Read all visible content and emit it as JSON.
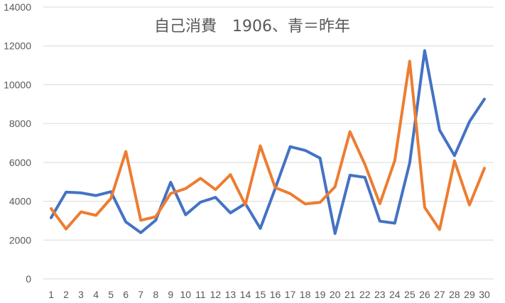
{
  "chart_data": {
    "type": "line",
    "title": "自己消費　1906、青＝昨年",
    "xlabel": "",
    "ylabel": "",
    "ylim": [
      0,
      14000
    ],
    "yticks": [
      0,
      2000,
      4000,
      6000,
      8000,
      10000,
      12000,
      14000
    ],
    "x": [
      1,
      2,
      3,
      4,
      5,
      6,
      7,
      8,
      9,
      10,
      11,
      12,
      13,
      14,
      15,
      16,
      17,
      18,
      19,
      20,
      21,
      22,
      23,
      24,
      25,
      26,
      27,
      28,
      29,
      30
    ],
    "grid": true,
    "series": [
      {
        "color": "#4472c4",
        "values": [
          3150,
          4470,
          4430,
          4290,
          4490,
          2930,
          2380,
          3020,
          4980,
          3300,
          3950,
          4200,
          3400,
          3880,
          2600,
          4660,
          6810,
          6620,
          6220,
          2340,
          5340,
          5230,
          2970,
          2870,
          5970,
          11760,
          7660,
          6350,
          8100,
          9260
        ]
      },
      {
        "color": "#ed7d31",
        "values": [
          3620,
          2570,
          3450,
          3270,
          4140,
          6560,
          3020,
          3200,
          4400,
          4650,
          5180,
          4600,
          5370,
          3820,
          6850,
          4700,
          4390,
          3860,
          3940,
          4750,
          7580,
          5900,
          3870,
          6090,
          11210,
          3680,
          2540,
          6080,
          3810,
          5700
        ]
      }
    ]
  }
}
